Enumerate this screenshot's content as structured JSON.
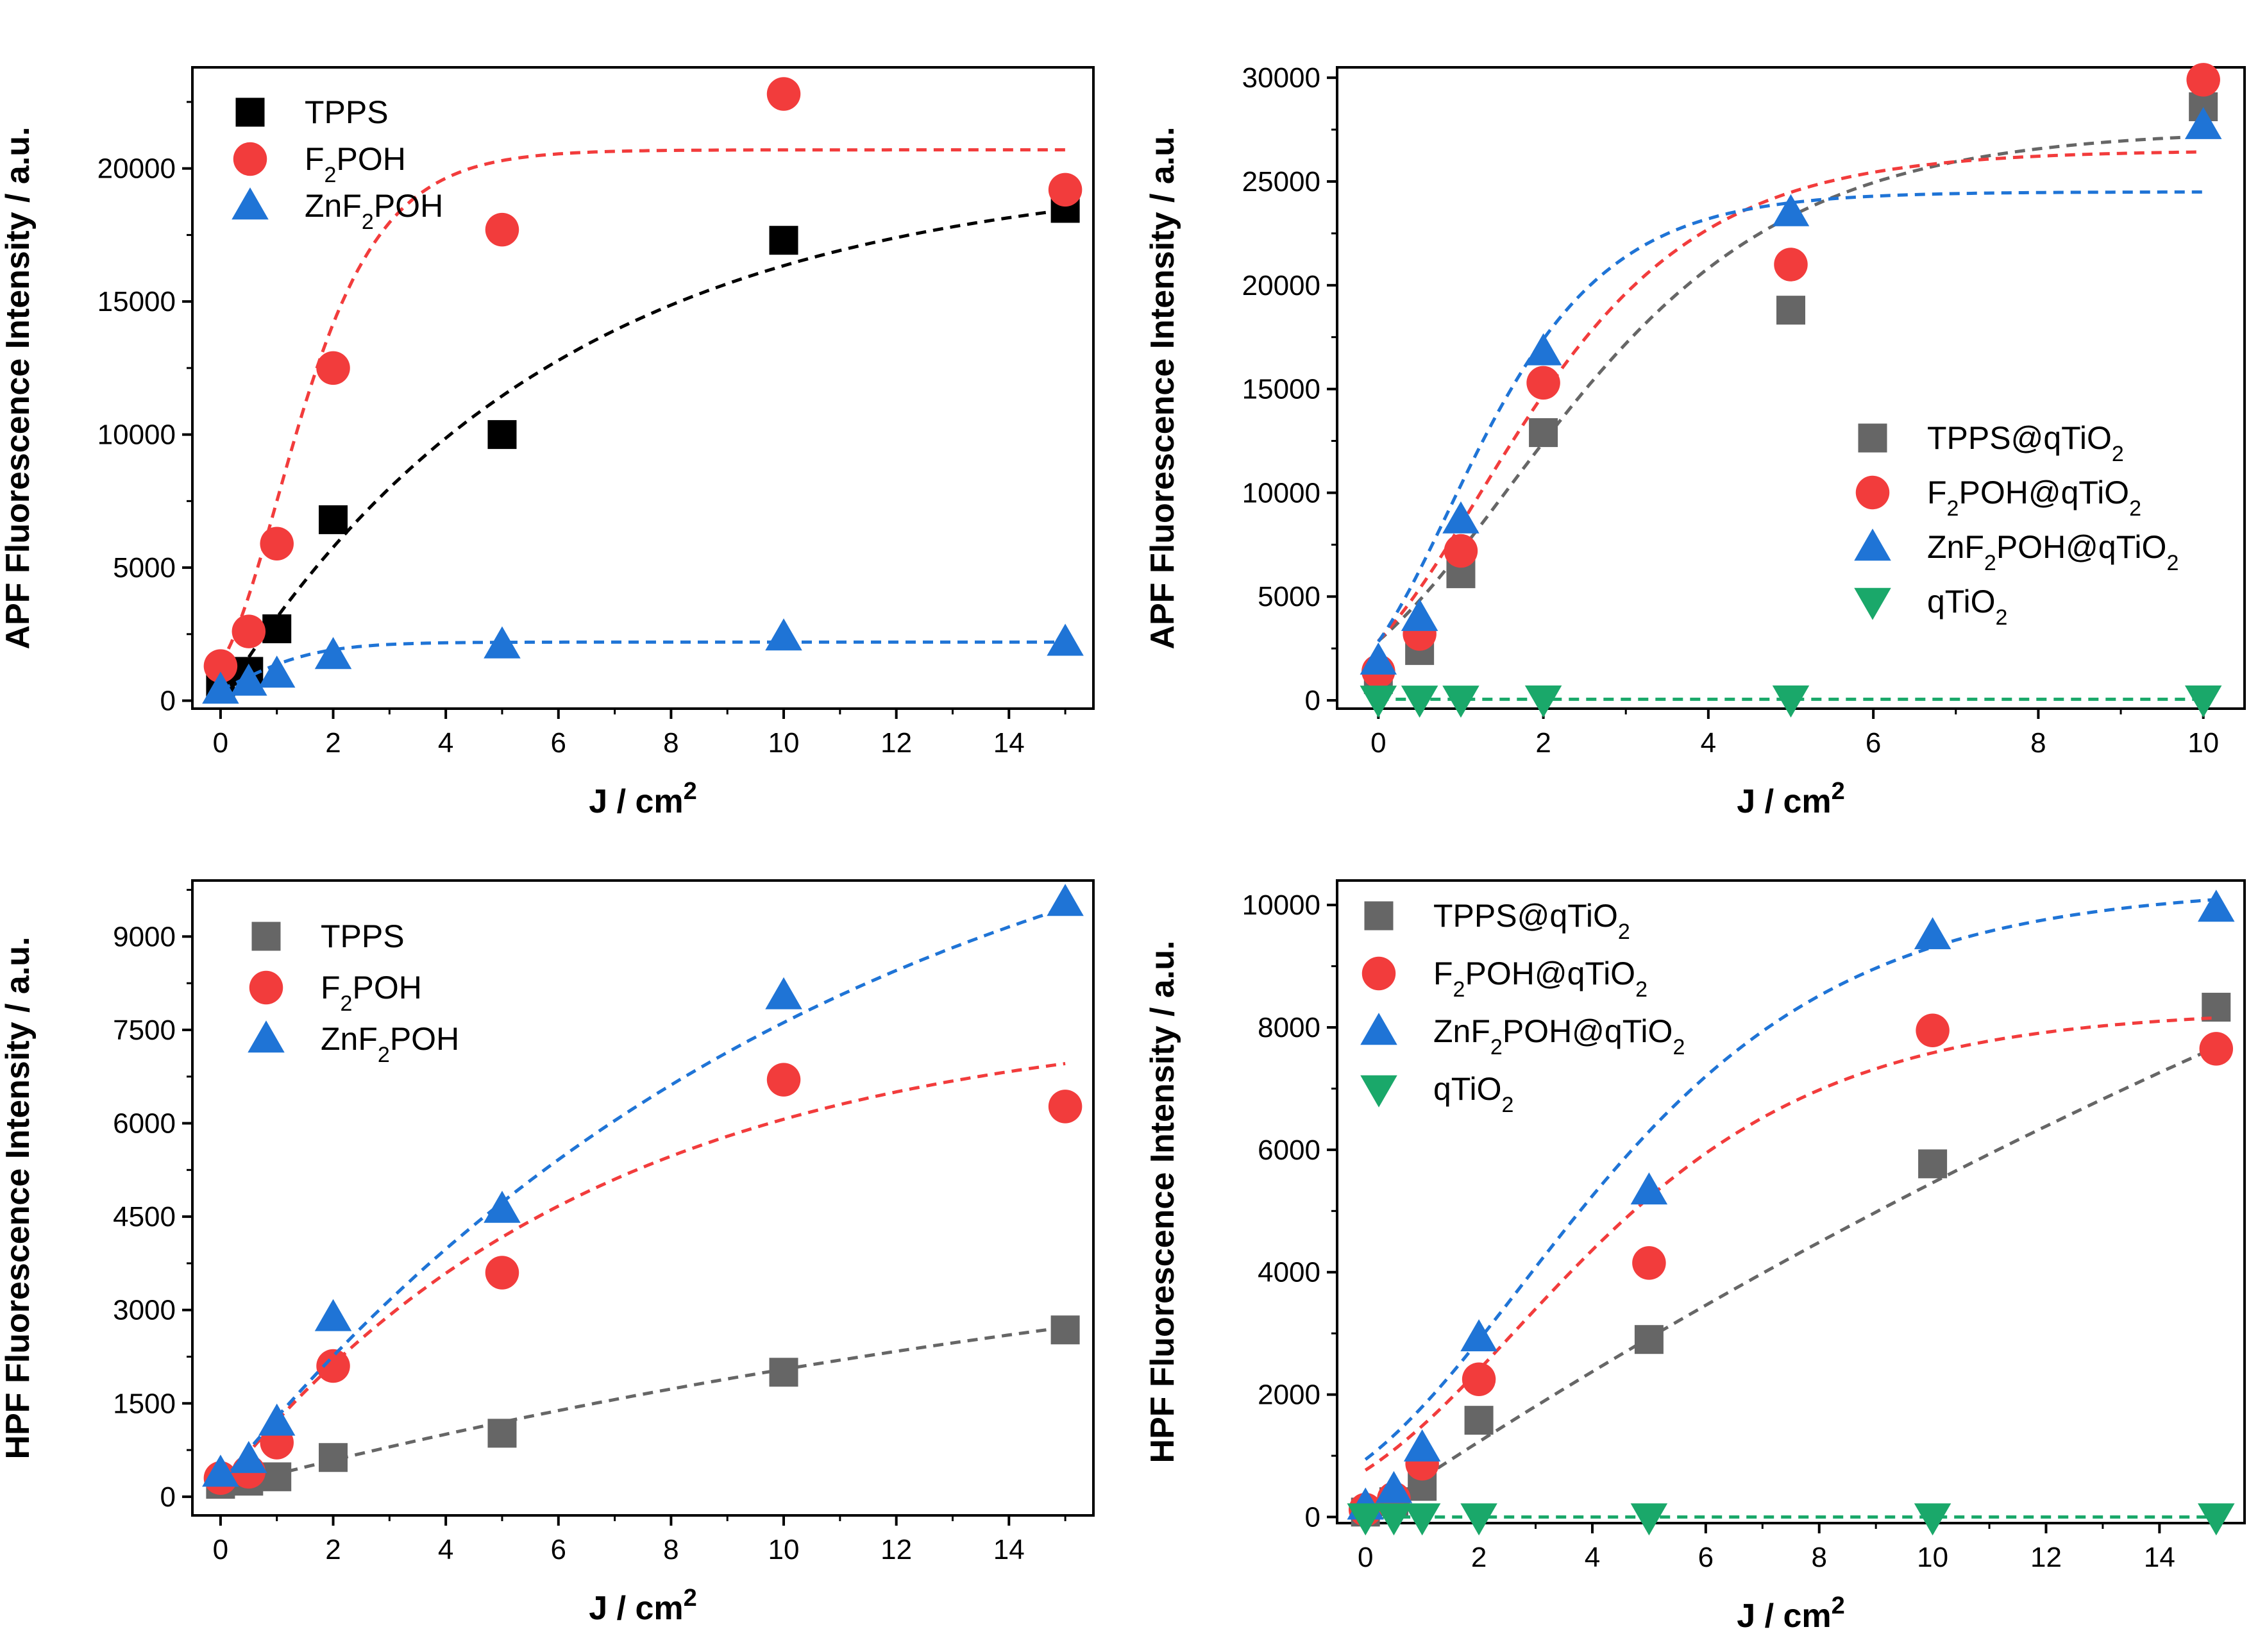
{
  "chart_data": [
    {
      "type": "scatter",
      "panel": "top-left",
      "xlabel": "J / cm2",
      "ylabel": "APF Fluorescence Intensity / a.u.",
      "xlim": [
        -0.5,
        15.5
      ],
      "ylim": [
        -300,
        23800
      ],
      "xticks": [
        0,
        2,
        4,
        6,
        8,
        10,
        12,
        14
      ],
      "yticks": [
        0,
        5000,
        10000,
        15000,
        20000
      ],
      "legend_position": "top-left",
      "series": [
        {
          "name": "TPPS",
          "color": "#000000",
          "marker": "square",
          "x": [
            0,
            0.5,
            1,
            2,
            5,
            10,
            15
          ],
          "y": [
            600,
            1100,
            2700,
            6800,
            10000,
            17300,
            18500
          ],
          "fit": {
            "model": "exp",
            "A": 20000,
            "k": 0.17,
            "y0": 0
          }
        },
        {
          "name": "F2POH",
          "color": "#f23c3c",
          "marker": "circle",
          "x": [
            0,
            0.5,
            1,
            2,
            5,
            10,
            15
          ],
          "y": [
            1300,
            2600,
            5900,
            12500,
            17700,
            22800,
            19200
          ],
          "fit": {
            "model": "gompertz",
            "A": 20700,
            "mu": 7500,
            "lambda": 0
          }
        },
        {
          "name": "ZnF2POH",
          "color": "#1f74d6",
          "marker": "triangle",
          "x": [
            0,
            0.5,
            1,
            2,
            5,
            10,
            15
          ],
          "y": [
            400,
            700,
            1000,
            1700,
            2100,
            2400,
            2200
          ],
          "fit": {
            "model": "gompertz",
            "A": 2200,
            "mu": 1000,
            "lambda": -0.4
          }
        }
      ]
    },
    {
      "type": "scatter",
      "panel": "top-right",
      "xlabel": "J / cm2",
      "ylabel": "APF Fluorescence Intensity / a.u.",
      "xlim": [
        -0.5,
        10.5
      ],
      "ylim": [
        -400,
        30500
      ],
      "xticks": [
        0,
        2,
        4,
        6,
        8,
        10
      ],
      "yticks": [
        0,
        5000,
        10000,
        15000,
        20000,
        25000,
        30000
      ],
      "legend_position": "center-right",
      "series": [
        {
          "name": "TPPS@qTiO2",
          "color": "#666666",
          "marker": "square",
          "x": [
            0,
            0.5,
            1,
            2,
            5,
            10
          ],
          "y": [
            1000,
            2400,
            6100,
            12900,
            18800,
            28600
          ],
          "fit": {
            "model": "gompertz",
            "A": 27500,
            "mu": 5300,
            "lambda": -0.35
          }
        },
        {
          "name": "F2POH@qTiO2",
          "color": "#f23c3c",
          "marker": "circle",
          "x": [
            0,
            0.5,
            1,
            2,
            5,
            10
          ],
          "y": [
            1400,
            3200,
            7200,
            15300,
            21000,
            29900
          ],
          "fit": {
            "model": "gompertz",
            "A": 26500,
            "mu": 6500,
            "lambda": -0.3
          }
        },
        {
          "name": "ZnF2POH@qTiO2",
          "color": "#1f74d6",
          "marker": "triangle",
          "x": [
            0,
            0.5,
            1,
            2,
            5,
            10
          ],
          "y": [
            1900,
            4000,
            8700,
            16800,
            23500,
            27700
          ],
          "fit": {
            "model": "gompertz",
            "A": 24500,
            "mu": 8300,
            "lambda": -0.25
          }
        },
        {
          "name": "qTiO2",
          "color": "#1aa86a",
          "marker": "triangle-down",
          "x": [
            0,
            0.5,
            1,
            2,
            5,
            10
          ],
          "y": [
            50,
            50,
            50,
            60,
            60,
            60
          ],
          "fit": {
            "model": "const",
            "y0": 50
          }
        }
      ]
    },
    {
      "type": "scatter",
      "panel": "bottom-left",
      "xlabel": "J / cm2",
      "ylabel": "HPF Fluorescence Intensity / a.u.",
      "xlim": [
        -0.5,
        15.5
      ],
      "ylim": [
        -300,
        9900
      ],
      "xticks": [
        0,
        2,
        4,
        6,
        8,
        10,
        12,
        14
      ],
      "yticks": [
        0,
        1500,
        3000,
        4500,
        6000,
        7500,
        9000
      ],
      "legend_position": "top-left",
      "series": [
        {
          "name": "TPPS",
          "color": "#666666",
          "marker": "square",
          "x": [
            0,
            0.5,
            1,
            2,
            5,
            10,
            15
          ],
          "y": [
            200,
            250,
            320,
            630,
            1020,
            2000,
            2680
          ],
          "fit": {
            "model": "exp",
            "A": 5200,
            "k": 0.046,
            "y0": 130
          }
        },
        {
          "name": "F2POH",
          "color": "#f23c3c",
          "marker": "circle",
          "x": [
            0,
            0.5,
            1,
            2,
            5,
            10,
            15
          ],
          "y": [
            300,
            400,
            870,
            2100,
            3600,
            6700,
            6270
          ],
          "fit": {
            "model": "exp",
            "A": 7600,
            "k": 0.15,
            "y0": 160
          }
        },
        {
          "name": "ZnF2POH",
          "color": "#1f74d6",
          "marker": "triangle",
          "x": [
            0,
            0.5,
            1,
            2,
            5,
            10,
            15
          ],
          "y": [
            380,
            600,
            1200,
            2880,
            4620,
            8050,
            9550
          ],
          "fit": {
            "model": "exp",
            "A": 12500,
            "k": 0.09,
            "y0": 200
          }
        }
      ]
    },
    {
      "type": "scatter",
      "panel": "bottom-right",
      "xlabel": "J / cm2",
      "ylabel": "HPF Fluorescence Intensity / a.u.",
      "xlim": [
        -0.5,
        15.5
      ],
      "ylim": [
        -100,
        10400
      ],
      "xticks": [
        0,
        2,
        4,
        6,
        8,
        10,
        12,
        14
      ],
      "yticks": [
        0,
        2000,
        4000,
        6000,
        8000,
        10000
      ],
      "legend_position": "top-left",
      "series": [
        {
          "name": "TPPS@qTiO2",
          "color": "#666666",
          "marker": "square",
          "x": [
            0,
            0.5,
            1,
            2,
            5,
            10,
            15
          ],
          "y": [
            80,
            250,
            500,
            1580,
            2900,
            5770,
            8330
          ],
          "fit": {
            "model": "exp",
            "A": 23000,
            "k": 0.027,
            "y0": 20
          }
        },
        {
          "name": "F2POH@qTiO2",
          "color": "#f23c3c",
          "marker": "circle",
          "x": [
            0,
            0.5,
            1,
            2,
            5,
            10,
            15
          ],
          "y": [
            120,
            300,
            870,
            2250,
            4150,
            7950,
            7650
          ],
          "fit": {
            "model": "gompertz",
            "A": 8300,
            "mu": 1000,
            "lambda": -0.4
          }
        },
        {
          "name": "ZnF2POH@qTiO2",
          "color": "#1f74d6",
          "marker": "triangle",
          "x": [
            0,
            0.5,
            1,
            2,
            5,
            10,
            15
          ],
          "y": [
            180,
            450,
            1130,
            2930,
            5330,
            9500,
            9950
          ],
          "fit": {
            "model": "gompertz",
            "A": 10300,
            "mu": 1200,
            "lambda": -0.4
          }
        },
        {
          "name": "qTiO2",
          "color": "#1aa86a",
          "marker": "triangle-down",
          "x": [
            0,
            0.5,
            1,
            2,
            5,
            10,
            15
          ],
          "y": [
            0,
            0,
            0,
            0,
            0,
            0,
            0
          ],
          "fit": {
            "model": "const",
            "y0": 0
          }
        }
      ]
    }
  ]
}
